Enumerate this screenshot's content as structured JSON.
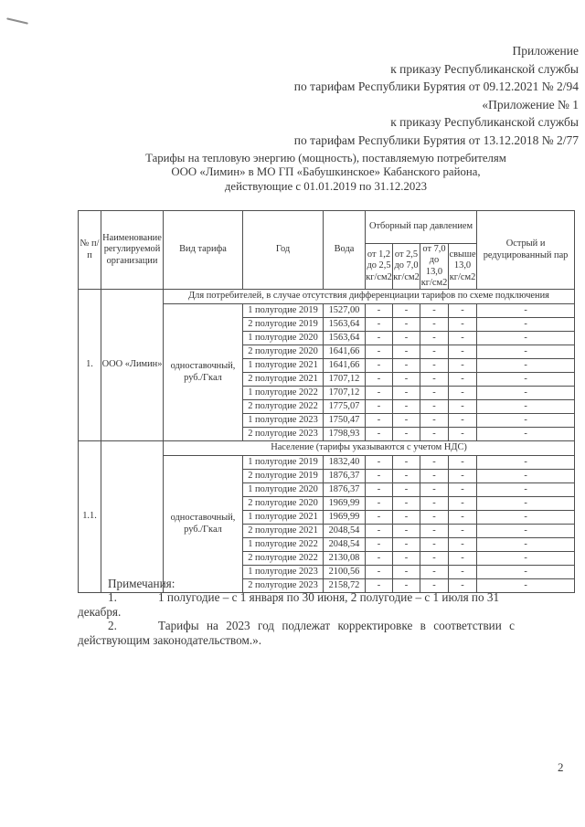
{
  "page": {
    "number": "2"
  },
  "header_block": {
    "lines": [
      "Приложение",
      "к приказу Республиканской службы",
      "по тарифам Республики Бурятия от 09.12.2021 № 2/94",
      "«Приложение № 1",
      "к приказу Республиканской службы",
      "по тарифам Республики Бурятия от 13.12.2018 № 2/77"
    ]
  },
  "title": {
    "lines": [
      "Тарифы на тепловую энергию (мощность), поставляемую потребителям",
      "ООО «Лимин» в МО ГП «Бабушкинское» Кабанского района,",
      "действующие с 01.01.2019 по 31.12.2023"
    ]
  },
  "table": {
    "dash": "-",
    "headers": {
      "num": "№ п/п",
      "org": "Наименование регулируемой организации",
      "tariff_type": "Вид тарифа",
      "year": "Год",
      "water": "Вода",
      "steam_group": "Отборный пар давлением",
      "steam_cols": [
        "от 1,2 до 2,5 кг/см2",
        "от 2,5 до 7,0 кг/см2",
        "от 7,0 до 13,0 кг/см2",
        "свыше 13,0 кг/см2"
      ],
      "sharp_steam": "Острый и редуцированный пар"
    },
    "sections": [
      {
        "num": "1.",
        "org": "ООО «Лимин»",
        "section_header": "Для потребителей, в случае отсутствия дифференциации тарифов по схеме подключения",
        "tariff_type": "одноставочный, руб./Гкал",
        "rows": [
          {
            "period": "1 полугодие 2019",
            "water": "1527,00"
          },
          {
            "period": "2 полугодие 2019",
            "water": "1563,64"
          },
          {
            "period": "1 полугодие 2020",
            "water": "1563,64"
          },
          {
            "period": "2 полугодие 2020",
            "water": "1641,66"
          },
          {
            "period": "1 полугодие 2021",
            "water": "1641,66"
          },
          {
            "period": "2 полугодие 2021",
            "water": "1707,12"
          },
          {
            "period": "1 полугодие 2022",
            "water": "1707,12"
          },
          {
            "period": "2 полугодие 2022",
            "water": "1775,07"
          },
          {
            "period": "1 полугодие 2023",
            "water": "1750,47"
          },
          {
            "period": "2 полугодие 2023",
            "water": "1798,93"
          }
        ]
      },
      {
        "num": "1.1.",
        "org": "",
        "section_header": "Население (тарифы указываются с учетом НДС)",
        "tariff_type": "одноставочный, руб./Гкал",
        "rows": [
          {
            "period": "1 полугодие 2019",
            "water": "1832,40"
          },
          {
            "period": "2 полугодие 2019",
            "water": "1876,37"
          },
          {
            "period": "1 полугодие 2020",
            "water": "1876,37"
          },
          {
            "period": "2 полугодие 2020",
            "water": "1969,99"
          },
          {
            "period": "1 полугодие 2021",
            "water": "1969,99"
          },
          {
            "period": "2 полугодие 2021",
            "water": "2048,54"
          },
          {
            "period": "1 полугодие 2022",
            "water": "2048,54"
          },
          {
            "period": "2 полугодие 2022",
            "water": "2130,08"
          },
          {
            "period": "1 полугодие 2023",
            "water": "2100,56"
          },
          {
            "period": "2 полугодие 2023",
            "water": "2158,72"
          }
        ]
      }
    ]
  },
  "notes": {
    "title": "Примечания:",
    "items": [
      {
        "num": "1.",
        "text": "1 полугодие – с 1 января по 30 июня, 2 полугодие – с 1 июля по 31 декабря."
      },
      {
        "num": "2.",
        "text": "Тарифы на 2023 год подлежат корректировке в соответствии с действующим законодательством.»."
      }
    ]
  }
}
